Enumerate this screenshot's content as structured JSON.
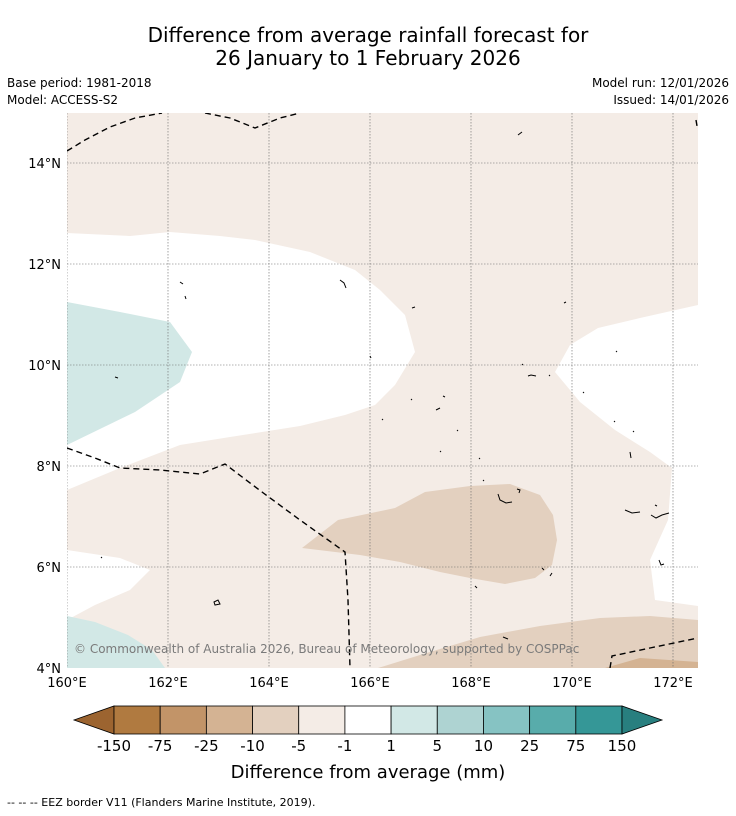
{
  "title": {
    "line1": "Difference from average rainfall forecast for",
    "line2": "26 January to 1 February 2026"
  },
  "meta": {
    "base_period": "Base period: 1981-2018",
    "model": "Model: ACCESS-S2",
    "model_run": "Model run: 12/01/2026",
    "issued": "Issued: 14/01/2026"
  },
  "map": {
    "lat_ticks": [
      "14°N",
      "12°N",
      "10°N",
      "8°N",
      "6°N",
      "4°N"
    ],
    "lon_ticks": [
      "160°E",
      "162°E",
      "164°E",
      "166°E",
      "168°E",
      "170°E",
      "172°E"
    ],
    "copyright": "© Commonwealth of Australia 2026, Bureau of Meteorology, supported by COSPPac"
  },
  "colorbar": {
    "tick_labels": [
      "-150",
      "-75",
      "-25",
      "-10",
      "-5",
      "-1",
      "1",
      "5",
      "10",
      "25",
      "75",
      "150"
    ],
    "colors": [
      "#9c6430",
      "#b07a40",
      "#c29468",
      "#d4b393",
      "#e3d0bf",
      "#f4ece6",
      "#ffffff",
      "#d2e8e6",
      "#aed3d2",
      "#86c3c3",
      "#58acab",
      "#359797",
      "#287f7f"
    ],
    "label": "Difference from average (mm)"
  },
  "footer": "--  --  -- EEZ border V11 (Flanders Marine Institute, 2019)."
}
